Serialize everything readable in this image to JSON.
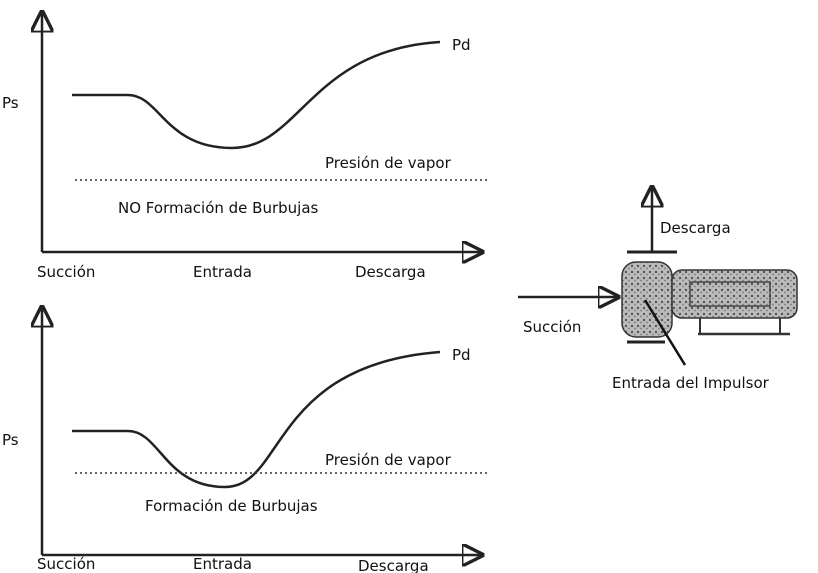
{
  "top": {
    "pd": "Pd",
    "ps": "Ps",
    "vapor": "Presión de vapor",
    "note": "NO Formación de Burbujas",
    "x_labels": [
      "Succión",
      "Entrada",
      "Descarga"
    ]
  },
  "bottom": {
    "pd": "Pd",
    "ps": "Ps",
    "vapor": "Presión de vapor",
    "note": "Formación de Burbujas",
    "x_labels": [
      "Succión",
      "Entrada",
      "Descarga"
    ]
  },
  "pump": {
    "discharge": "Descarga",
    "suction": "Succión",
    "impeller": "Entrada del Impulsor"
  }
}
